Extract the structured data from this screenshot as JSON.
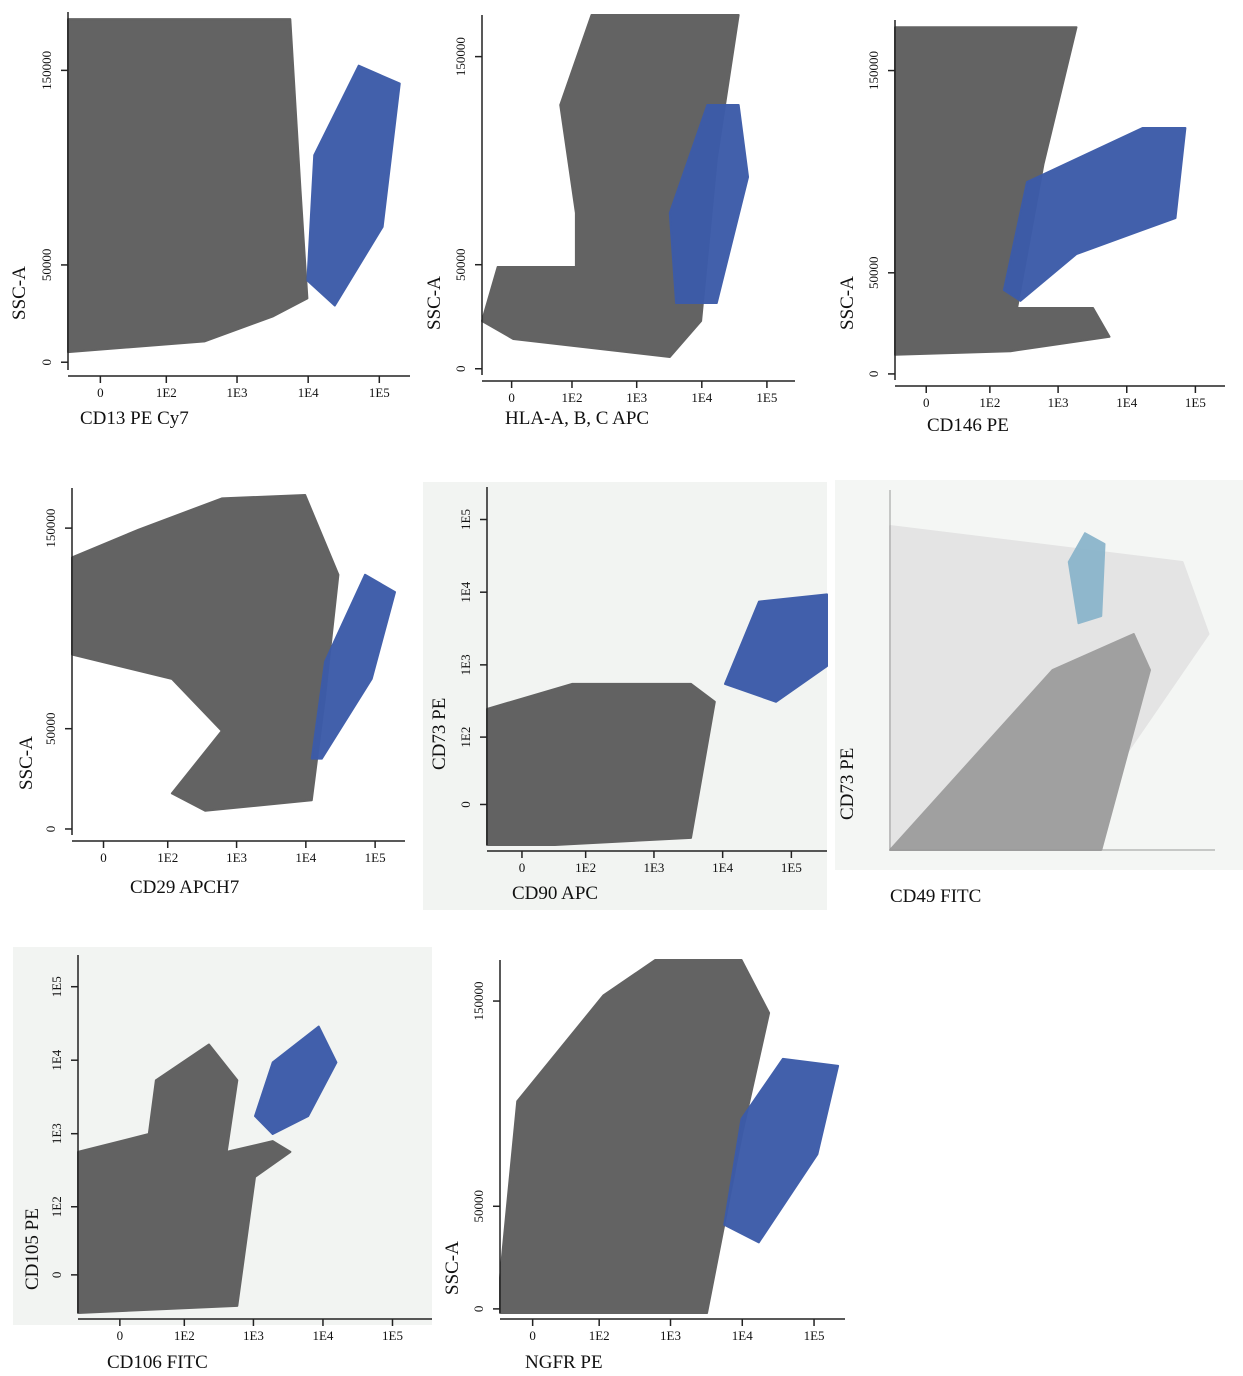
{
  "chart_data": [
    {
      "type": "scatter",
      "xlabel": "CD13 PE Cy7",
      "ylabel": "SSC-A",
      "xscale": "biexponential",
      "xlim": [
        -30,
        270000
      ],
      "ylim": [
        -4000,
        180000
      ],
      "xticks": [
        0,
        {
          "value": 100,
          "label": "1E2"
        },
        {
          "value": 1000,
          "label": "1E3"
        },
        {
          "value": 10000,
          "label": "1E4"
        },
        {
          "value": 100000,
          "label": "1E5"
        }
      ],
      "yticks": [
        0,
        50000,
        150000
      ],
      "colors": [
        "#5e5e5e",
        "#3c5ba9"
      ]
    },
    {
      "type": "scatter",
      "xlabel": "HLA-A, B, C APC",
      "ylabel": "SSC-A",
      "xscale": "biexponential",
      "xlim": [
        -30,
        270000
      ],
      "ylim": [
        -3000,
        170000
      ],
      "xticks": [
        0,
        {
          "value": 100,
          "label": "1E2"
        },
        {
          "value": 1000,
          "label": "1E3"
        },
        {
          "value": 10000,
          "label": "1E4"
        },
        {
          "value": 100000,
          "label": "1E5"
        }
      ],
      "yticks": [
        0,
        50000,
        150000
      ],
      "colors": [
        "#5e5e5e",
        "#3c5ba9"
      ]
    },
    {
      "type": "scatter",
      "xlabel": "CD146 PE",
      "ylabel": "SSC-A",
      "xscale": "biexponential",
      "xlim": [
        -30,
        270000
      ],
      "ylim": [
        -3000,
        175000
      ],
      "xticks": [
        0,
        {
          "value": 100,
          "label": "1E2"
        },
        {
          "value": 1000,
          "label": "1E3"
        },
        {
          "value": 10000,
          "label": "1E4"
        },
        {
          "value": 100000,
          "label": "1E5"
        }
      ],
      "yticks": [
        0,
        50000,
        150000
      ],
      "colors": [
        "#5e5e5e",
        "#3c5ba9"
      ]
    },
    {
      "type": "scatter",
      "xlabel": "CD29 APCH7",
      "ylabel": "SSC-A",
      "xscale": "biexponential",
      "xlim": [
        -30,
        270000
      ],
      "ylim": [
        -3000,
        170000
      ],
      "xticks": [
        0,
        {
          "value": 100,
          "label": "1E2"
        },
        {
          "value": 1000,
          "label": "1E3"
        },
        {
          "value": 10000,
          "label": "1E4"
        },
        {
          "value": 100000,
          "label": "1E5"
        }
      ],
      "yticks": [
        0,
        50000,
        150000
      ],
      "colors": [
        "#5e5e5e",
        "#3c5ba9"
      ]
    },
    {
      "type": "scatter",
      "xlabel": "CD90 APC",
      "ylabel": "CD73 PE",
      "xscale": "biexponential",
      "yscale": "biexponential",
      "xlim": [
        -35,
        330000
      ],
      "ylim": [
        -40,
        280000
      ],
      "xticks": [
        0,
        {
          "value": 100,
          "label": "1E2"
        },
        {
          "value": 1000,
          "label": "1E3"
        },
        {
          "value": 10000,
          "label": "1E4"
        },
        {
          "value": 100000,
          "label": "1E5"
        }
      ],
      "yticks": [
        0,
        {
          "value": 100,
          "label": "1E2"
        },
        {
          "value": 1000,
          "label": "1E3"
        },
        {
          "value": 10000,
          "label": "1E4"
        },
        {
          "value": 100000,
          "label": "1E5"
        }
      ],
      "colors": [
        "#5e5e5e",
        "#3c5ba9"
      ]
    },
    {
      "type": "scatter",
      "xlabel": "CD49 FITC",
      "ylabel": "CD73 PE",
      "colors": [
        "#e4e4e4",
        "#9e9e9e",
        "#8db6cc"
      ]
    },
    {
      "type": "scatter",
      "xlabel": "CD106 FITC",
      "ylabel": "CD105 PE",
      "xscale": "biexponential",
      "yscale": "biexponential",
      "xlim": [
        -45,
        370000
      ],
      "ylim": [
        -36,
        270000
      ],
      "xticks": [
        0,
        {
          "value": 100,
          "label": "1E2"
        },
        {
          "value": 1000,
          "label": "1E3"
        },
        {
          "value": 10000,
          "label": "1E4"
        },
        {
          "value": 100000,
          "label": "1E5"
        }
      ],
      "yticks": [
        0,
        {
          "value": 100,
          "label": "1E2"
        },
        {
          "value": 1000,
          "label": "1E3"
        },
        {
          "value": 10000,
          "label": "1E4"
        },
        {
          "value": 100000,
          "label": "1E5"
        }
      ],
      "colors": [
        "#5e5e5e",
        "#3c5ba9"
      ]
    },
    {
      "type": "scatter",
      "xlabel": "NGFR PE",
      "ylabel": "SSC-A",
      "xscale": "biexponential",
      "xlim": [
        -30,
        270000
      ],
      "ylim": [
        -2000,
        170000
      ],
      "xticks": [
        0,
        {
          "value": 100,
          "label": "1E2"
        },
        {
          "value": 1000,
          "label": "1E3"
        },
        {
          "value": 10000,
          "label": "1E4"
        },
        {
          "value": 100000,
          "label": "1E5"
        }
      ],
      "yticks": [
        0,
        50000,
        150000
      ],
      "colors": [
        "#5e5e5e",
        "#3c5ba9"
      ]
    }
  ]
}
